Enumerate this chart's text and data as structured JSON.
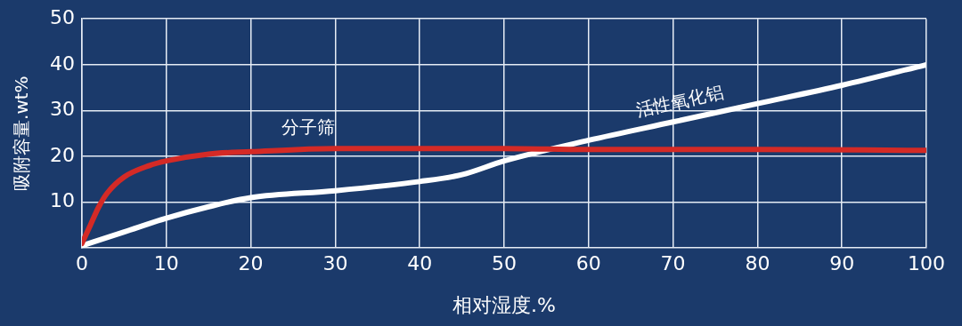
{
  "chart_data": {
    "type": "line",
    "xlabel": "相对湿度.%",
    "ylabel": "吸附容量.wt%",
    "xlim": [
      0,
      100
    ],
    "xticks": [
      0,
      10,
      20,
      30,
      40,
      50,
      60,
      70,
      80,
      90,
      100
    ],
    "ylim": [
      0,
      50
    ],
    "yticks": [
      10,
      20,
      30,
      40,
      50
    ],
    "grid": true,
    "legend": false,
    "marker": "none",
    "line_style": "solid",
    "series": [
      {
        "name": "分子筛",
        "color": "#d42a26",
        "x": [
          0,
          1,
          2,
          3,
          5,
          8,
          10,
          15,
          20,
          30,
          40,
          50,
          60,
          80,
          100
        ],
        "values": [
          1,
          5,
          9,
          12,
          15.5,
          18,
          19,
          20.5,
          21,
          21.7,
          21.7,
          21.7,
          21.5,
          21.5,
          21.3
        ]
      },
      {
        "name": "活性氧化铝",
        "color": "#ffffff",
        "x": [
          0,
          5,
          10,
          15,
          20,
          30,
          40,
          45,
          50,
          60,
          70,
          80,
          90,
          100
        ],
        "values": [
          0.5,
          3.5,
          6.5,
          9,
          11,
          12.5,
          14.5,
          16,
          19,
          23.5,
          27.5,
          31.5,
          35.5,
          40
        ]
      }
    ]
  }
}
